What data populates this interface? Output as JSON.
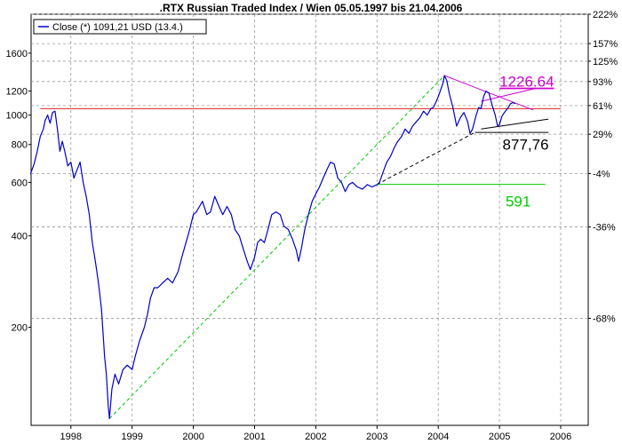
{
  "chart_data": {
    "type": "line",
    "title": ".RTX Russian Traded Index / Wien 05.05.1997 bis 21.04.2006",
    "xlabel": "",
    "ylabel": "",
    "y_scale": "log",
    "ylim": [
      95,
      2150
    ],
    "xlim": [
      1997.35,
      2006.45
    ],
    "grid": true,
    "legend": {
      "placement": "top-left",
      "entries": [
        "Close (*) 1091,21 USD (13.4.)"
      ]
    },
    "x_ticks": [
      {
        "label": "1998",
        "x": 1998.0
      },
      {
        "label": "1999",
        "x": 1999.0
      },
      {
        "label": "2000",
        "x": 2000.0
      },
      {
        "label": "2001",
        "x": 2001.0
      },
      {
        "label": "2002",
        "x": 2002.0
      },
      {
        "label": "2003",
        "x": 2003.0
      },
      {
        "label": "2004",
        "x": 2004.0
      },
      {
        "label": "2005",
        "x": 2005.0
      },
      {
        "label": "2006",
        "x": 2006.0
      }
    ],
    "y_ticks_left": [
      {
        "label": "200",
        "y": 200
      },
      {
        "label": "400",
        "y": 400
      },
      {
        "label": "600",
        "y": 600
      },
      {
        "label": "800",
        "y": 800
      },
      {
        "label": "1000",
        "y": 1000
      },
      {
        "label": "1200",
        "y": 1200
      },
      {
        "label": "1600",
        "y": 1600
      }
    ],
    "y_ticks_right": [
      {
        "label": "222%",
        "y": 2150
      },
      {
        "label": "157%",
        "y": 1720
      },
      {
        "label": "125%",
        "y": 1505
      },
      {
        "label": "93%",
        "y": 1290
      },
      {
        "label": "61%",
        "y": 1075
      },
      {
        "label": "29%",
        "y": 865
      },
      {
        "label": "-4%",
        "y": 642
      },
      {
        "label": "-36%",
        "y": 428
      },
      {
        "label": "-68%",
        "y": 214
      }
    ],
    "series": [
      {
        "color": "#0000cc",
        "points": [
          [
            1997.34,
            640
          ],
          [
            1997.4,
            690
          ],
          [
            1997.45,
            760
          ],
          [
            1997.5,
            850
          ],
          [
            1997.55,
            900
          ],
          [
            1997.58,
            960
          ],
          [
            1997.62,
            1000
          ],
          [
            1997.66,
            940
          ],
          [
            1997.7,
            1020
          ],
          [
            1997.74,
            1030
          ],
          [
            1997.78,
            900
          ],
          [
            1997.82,
            760
          ],
          [
            1997.86,
            820
          ],
          [
            1997.9,
            760
          ],
          [
            1997.95,
            680
          ],
          [
            1998.0,
            700
          ],
          [
            1998.05,
            620
          ],
          [
            1998.1,
            660
          ],
          [
            1998.15,
            700
          ],
          [
            1998.2,
            600
          ],
          [
            1998.25,
            540
          ],
          [
            1998.3,
            470
          ],
          [
            1998.35,
            380
          ],
          [
            1998.4,
            330
          ],
          [
            1998.45,
            280
          ],
          [
            1998.5,
            230
          ],
          [
            1998.55,
            160
          ],
          [
            1998.58,
            140
          ],
          [
            1998.61,
            110
          ],
          [
            1998.63,
            100
          ],
          [
            1998.67,
            125
          ],
          [
            1998.72,
            140
          ],
          [
            1998.78,
            130
          ],
          [
            1998.85,
            145
          ],
          [
            1998.92,
            150
          ],
          [
            1999.0,
            145
          ],
          [
            1999.05,
            160
          ],
          [
            1999.12,
            180
          ],
          [
            1999.2,
            200
          ],
          [
            1999.25,
            220
          ],
          [
            1999.3,
            250
          ],
          [
            1999.36,
            270
          ],
          [
            1999.42,
            270
          ],
          [
            1999.5,
            280
          ],
          [
            1999.58,
            290
          ],
          [
            1999.66,
            280
          ],
          [
            1999.75,
            305
          ],
          [
            1999.82,
            345
          ],
          [
            1999.88,
            380
          ],
          [
            1999.94,
            420
          ],
          [
            2000.0,
            470
          ],
          [
            2000.05,
            480
          ],
          [
            2000.1,
            500
          ],
          [
            2000.15,
            520
          ],
          [
            2000.22,
            470
          ],
          [
            2000.28,
            480
          ],
          [
            2000.35,
            540
          ],
          [
            2000.42,
            500
          ],
          [
            2000.48,
            470
          ],
          [
            2000.55,
            500
          ],
          [
            2000.62,
            470
          ],
          [
            2000.68,
            420
          ],
          [
            2000.75,
            400
          ],
          [
            2000.82,
            360
          ],
          [
            2000.88,
            330
          ],
          [
            2000.93,
            310
          ],
          [
            2001.0,
            340
          ],
          [
            2001.05,
            380
          ],
          [
            2001.1,
            390
          ],
          [
            2001.16,
            380
          ],
          [
            2001.22,
            420
          ],
          [
            2001.28,
            470
          ],
          [
            2001.35,
            480
          ],
          [
            2001.42,
            470
          ],
          [
            2001.48,
            430
          ],
          [
            2001.55,
            420
          ],
          [
            2001.62,
            390
          ],
          [
            2001.68,
            360
          ],
          [
            2001.72,
            330
          ],
          [
            2001.76,
            360
          ],
          [
            2001.82,
            420
          ],
          [
            2001.88,
            470
          ],
          [
            2001.94,
            520
          ],
          [
            2002.0,
            550
          ],
          [
            2002.06,
            580
          ],
          [
            2002.12,
            620
          ],
          [
            2002.18,
            660
          ],
          [
            2002.24,
            700
          ],
          [
            2002.3,
            690
          ],
          [
            2002.36,
            620
          ],
          [
            2002.42,
            600
          ],
          [
            2002.48,
            560
          ],
          [
            2002.54,
            590
          ],
          [
            2002.6,
            600
          ],
          [
            2002.68,
            580
          ],
          [
            2002.76,
            570
          ],
          [
            2002.84,
            590
          ],
          [
            2002.92,
            580
          ],
          [
            2003.0,
            590
          ],
          [
            2003.04,
            600
          ],
          [
            2003.1,
            650
          ],
          [
            2003.16,
            700
          ],
          [
            2003.22,
            730
          ],
          [
            2003.28,
            780
          ],
          [
            2003.34,
            820
          ],
          [
            2003.4,
            850
          ],
          [
            2003.46,
            900
          ],
          [
            2003.52,
            870
          ],
          [
            2003.58,
            920
          ],
          [
            2003.64,
            950
          ],
          [
            2003.7,
            980
          ],
          [
            2003.76,
            1030
          ],
          [
            2003.82,
            1000
          ],
          [
            2003.88,
            1050
          ],
          [
            2003.92,
            1060
          ],
          [
            2003.96,
            1100
          ],
          [
            2004.0,
            1150
          ],
          [
            2004.04,
            1210
          ],
          [
            2004.08,
            1280
          ],
          [
            2004.1,
            1350
          ],
          [
            2004.14,
            1300
          ],
          [
            2004.18,
            1180
          ],
          [
            2004.24,
            1060
          ],
          [
            2004.3,
            920
          ],
          [
            2004.36,
            980
          ],
          [
            2004.42,
            1020
          ],
          [
            2004.48,
            950
          ],
          [
            2004.52,
            870
          ],
          [
            2004.56,
            900
          ],
          [
            2004.62,
            1000
          ],
          [
            2004.66,
            1060
          ],
          [
            2004.7,
            1050
          ],
          [
            2004.74,
            1150
          ],
          [
            2004.78,
            1200
          ],
          [
            2004.83,
            1180
          ],
          [
            2004.88,
            1080
          ],
          [
            2004.93,
            1000
          ],
          [
            2004.97,
            920
          ],
          [
            2005.0,
            930
          ],
          [
            2005.04,
            990
          ],
          [
            2005.08,
            1020
          ],
          [
            2005.13,
            1050
          ],
          [
            2005.18,
            1090
          ],
          [
            2005.22,
            1100
          ],
          [
            2005.26,
            1090
          ]
        ]
      }
    ],
    "reference_lines": [
      {
        "color": "#dd2222",
        "style": "solid",
        "x1": 1997.5,
        "y1": 1050,
        "x2": 2006.0,
        "y2": 1050
      },
      {
        "color": "#00cc00",
        "style": "solid",
        "x1": 2003.0,
        "y1": 591,
        "x2": 2005.75,
        "y2": 591
      },
      {
        "color": "#000000",
        "style": "solid",
        "x1": 2004.6,
        "y1": 877,
        "x2": 2005.8,
        "y2": 877
      },
      {
        "color": "#000000",
        "style": "solid",
        "x1": 2004.7,
        "y1": 900,
        "x2": 2005.8,
        "y2": 970
      },
      {
        "color": "#000000",
        "style": "dashed",
        "x1": 2003.0,
        "y1": 591,
        "x2": 2004.6,
        "y2": 877
      },
      {
        "color": "#00cc00",
        "style": "dashed",
        "x1": 1998.63,
        "y1": 100,
        "x2": 2004.1,
        "y2": 1350
      },
      {
        "color": "#cc00cc",
        "style": "solid",
        "x1": 2004.1,
        "y1": 1350,
        "x2": 2005.55,
        "y2": 1040
      },
      {
        "color": "#cc00cc",
        "style": "solid",
        "x1": 2004.7,
        "y1": 1110,
        "x2": 2005.6,
        "y2": 1226
      }
    ],
    "annotations": [
      {
        "text": "1226.64",
        "color": "#cc00cc",
        "x": 2005.0,
        "y": 1240,
        "underline": true
      },
      {
        "text": "877,76",
        "color": "#000000",
        "x": 2005.05,
        "y": 770,
        "underline": false
      },
      {
        "text": "591",
        "color": "#00cc00",
        "x": 2005.1,
        "y": 500,
        "underline": false
      }
    ]
  }
}
